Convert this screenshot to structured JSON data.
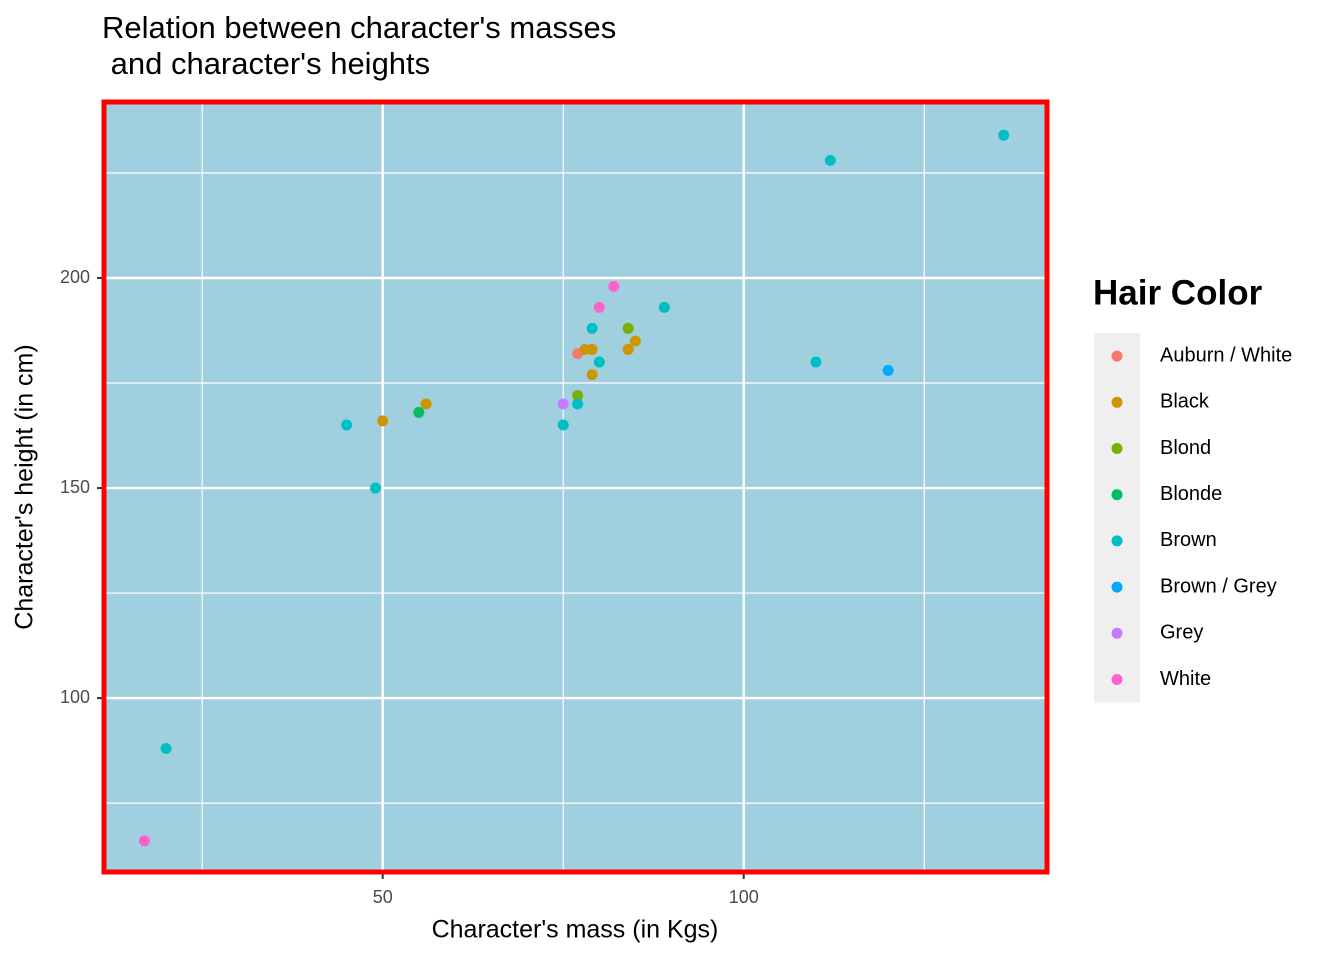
{
  "chart_data": {
    "type": "scatter",
    "title": "Relation between character's masses\n and character's heights",
    "x_label": "Character's mass (in Kgs)",
    "y_label": "Character's height (in cm)",
    "legend_title": "Hair Color",
    "legend_position": "right",
    "grid": true,
    "background": "#a0cfdf",
    "border_color": "#ff0000",
    "xlim": [
      11.4,
      142.0
    ],
    "ylim": [
      58.6,
      241.9
    ],
    "xticks": [
      50,
      100
    ],
    "yticks": [
      100,
      150,
      200
    ],
    "series": [
      {
        "name": "Auburn / White",
        "color": "#F8766D",
        "x": [
          77
        ],
        "values": [
          182
        ]
      },
      {
        "name": "Black",
        "color": "#CD9600",
        "x": [
          50,
          56,
          78,
          79,
          79,
          84,
          85
        ],
        "values": [
          166,
          170,
          183,
          183,
          177,
          183,
          185
        ]
      },
      {
        "name": "Blond",
        "color": "#7CAE00",
        "x": [
          77,
          84
        ],
        "values": [
          172,
          188
        ]
      },
      {
        "name": "Blonde",
        "color": "#00BE67",
        "x": [
          55
        ],
        "values": [
          168
        ]
      },
      {
        "name": "Brown",
        "color": "#00BFC4",
        "x": [
          20,
          45,
          49,
          75,
          77,
          79,
          80,
          89,
          110,
          112,
          136
        ],
        "values": [
          88,
          165,
          150,
          165,
          170,
          188,
          180,
          193,
          180,
          228,
          234
        ]
      },
      {
        "name": "Brown / Grey",
        "color": "#00A9FF",
        "x": [
          120
        ],
        "values": [
          178
        ]
      },
      {
        "name": "Grey",
        "color": "#C77CFF",
        "x": [
          75
        ],
        "values": [
          170
        ]
      },
      {
        "name": "White",
        "color": "#FF61CC",
        "x": [
          17,
          80,
          82
        ],
        "values": [
          66,
          193,
          198
        ]
      }
    ]
  }
}
